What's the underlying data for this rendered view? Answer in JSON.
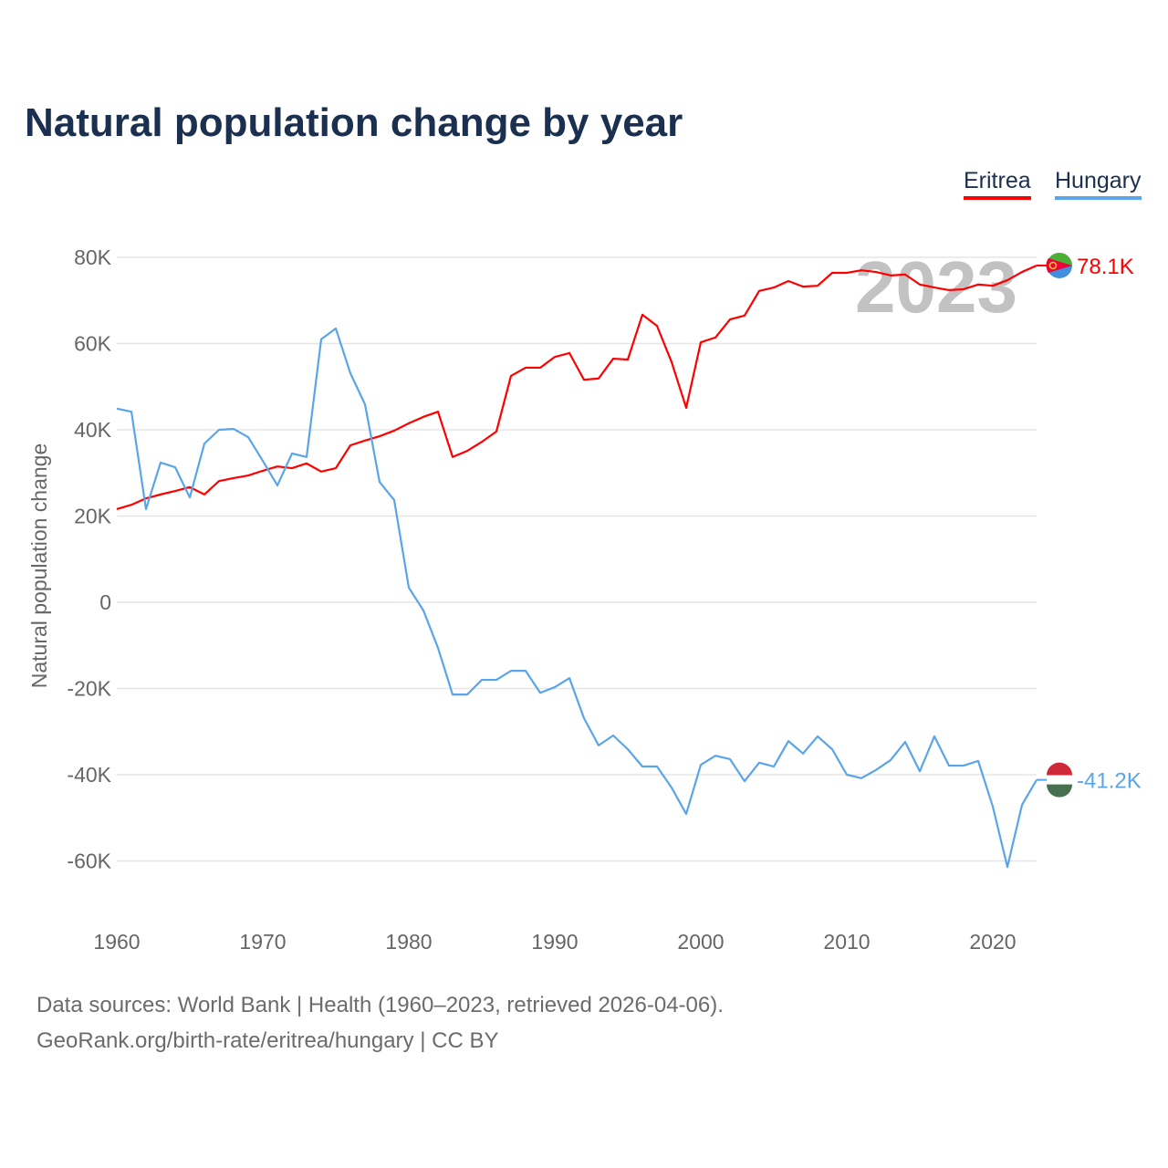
{
  "chart_data": {
    "type": "line",
    "title": "Natural population change by year",
    "xlabel": "",
    "ylabel": "Natural population change",
    "xlim": [
      1960,
      2023
    ],
    "ylim": [
      -70000,
      90000
    ],
    "yticks": [
      80000,
      60000,
      40000,
      20000,
      0,
      -20000,
      -40000,
      -60000
    ],
    "ytick_labels": [
      "80K",
      "60K",
      "40K",
      "20K",
      "0",
      "-20K",
      "-40K",
      "-60K"
    ],
    "xticks": [
      1960,
      1970,
      1980,
      1990,
      2000,
      2010,
      2020
    ],
    "xtick_labels": [
      "1960",
      "1970",
      "1980",
      "1990",
      "2000",
      "2010",
      "2020"
    ],
    "grid": true,
    "legend_position": "top-right",
    "year_watermark": "2023",
    "start_year": 1960,
    "series": [
      {
        "name": "Eritrea",
        "color": "#ff0000",
        "end_label": "78.1K",
        "values": [
          21.6,
          22.6,
          24.1,
          25.0,
          25.8,
          26.7,
          25.0,
          28.1,
          28.8,
          29.4,
          30.5,
          31.5,
          31.1,
          32.2,
          30.3,
          31.1,
          36.4,
          37.5,
          38.5,
          39.8,
          41.5,
          43.0,
          44.2,
          33.7,
          35.1,
          37.2,
          39.6,
          52.5,
          54.4,
          54.4,
          56.9,
          57.8,
          51.6,
          51.9,
          56.5,
          56.3,
          66.7,
          64.1,
          55.7,
          45.1,
          60.3,
          61.4,
          65.6,
          66.5,
          72.2,
          73.0,
          74.5,
          73.2,
          73.4,
          76.4,
          76.4,
          77.0,
          76.6,
          75.8,
          76.0,
          73.7,
          73.0,
          72.4,
          72.6,
          73.7,
          73.4,
          74.7,
          76.6,
          78.1
        ]
      },
      {
        "name": "Hungary",
        "color": "#5aa5ea",
        "end_label": "-41.2K",
        "values": [
          44.9,
          44.2,
          21.6,
          32.4,
          31.3,
          24.3,
          36.8,
          40.0,
          40.2,
          38.3,
          32.8,
          27.1,
          34.5,
          33.7,
          61.0,
          63.5,
          53.1,
          45.9,
          27.9,
          23.7,
          3.4,
          -1.9,
          -10.6,
          -21.4,
          -21.4,
          -18.0,
          -18.0,
          -15.9,
          -15.9,
          -21.0,
          -19.7,
          -17.6,
          -26.9,
          -33.2,
          -30.9,
          -34.1,
          -38.1,
          -38.1,
          -43.0,
          -49.1,
          -37.7,
          -35.6,
          -36.4,
          -41.5,
          -37.2,
          -38.1,
          -32.2,
          -35.1,
          -31.1,
          -34.1,
          -40.0,
          -40.8,
          -38.9,
          -36.6,
          -32.4,
          -39.2,
          -31.1,
          -37.9,
          -37.9,
          -36.8,
          -47.4,
          -61.4,
          -47.0,
          -41.2
        ]
      }
    ],
    "value_unit": "thousands"
  },
  "footer": {
    "line1": "Data sources: World Bank | Health (1960–2023, retrieved 2026-04-06).",
    "line2": "GeoRank.org/birth-rate/eritrea/hungary | CC BY"
  }
}
